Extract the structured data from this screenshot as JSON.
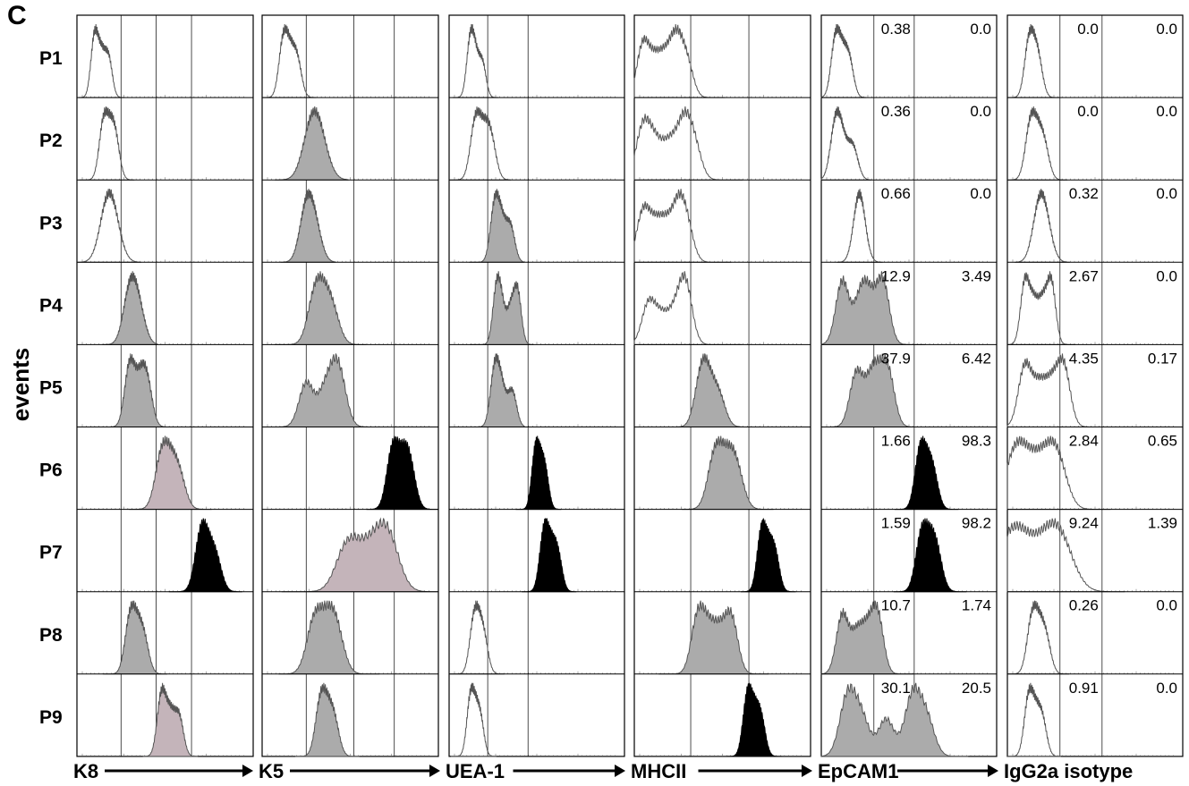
{
  "panel_letter": "C",
  "y_axis_label": "events",
  "rows": [
    "P1",
    "P2",
    "P3",
    "P4",
    "P5",
    "P6",
    "P7",
    "P8",
    "P9"
  ],
  "colors": {
    "open": "none",
    "gray": "#ababab",
    "mauve": "#c4b4ba",
    "black": "#000000",
    "outline": "#555555"
  },
  "chart_data": {
    "type": "histogram",
    "description_free": true,
    "markers": [
      {
        "name": "K8",
        "gates": [
          0.25,
          0.45,
          0.65
        ],
        "rows": [
          {
            "row": "P1",
            "fill": "open",
            "mode": 0.14,
            "spread": 0.05,
            "peaks": [
              0.1,
              0.14,
              0.18
            ]
          },
          {
            "row": "P2",
            "fill": "open",
            "mode": 0.17,
            "spread": 0.06,
            "peaks": [
              0.15,
              0.19,
              0.22
            ]
          },
          {
            "row": "P3",
            "fill": "open",
            "mode": 0.18,
            "spread": 0.07,
            "peaks": [
              0.17,
              0.21
            ]
          },
          {
            "row": "P4",
            "fill": "gray",
            "mode": 0.3,
            "spread": 0.06,
            "peaks": [
              0.3,
              0.35
            ]
          },
          {
            "row": "P5",
            "fill": "gray",
            "mode": 0.34,
            "spread": 0.07,
            "peaks": [
              0.3,
              0.36,
              0.4
            ]
          },
          {
            "row": "P6",
            "fill": "mauve",
            "mode": 0.53,
            "spread": 0.09,
            "peaks": [
              0.48,
              0.53,
              0.58
            ]
          },
          {
            "row": "P7",
            "fill": "black",
            "mode": 0.73,
            "spread": 0.08,
            "peaks": [
              0.7,
              0.74,
              0.79
            ]
          },
          {
            "row": "P8",
            "fill": "gray",
            "mode": 0.33,
            "spread": 0.07,
            "peaks": [
              0.3,
              0.34,
              0.38
            ]
          },
          {
            "row": "P9",
            "fill": "mauve",
            "mode": 0.53,
            "spread": 0.06,
            "peaks": [
              0.48,
              0.53,
              0.58
            ]
          }
        ]
      },
      {
        "name": "K5",
        "gates": [
          0.25,
          0.52,
          0.75
        ],
        "rows": [
          {
            "row": "P1",
            "fill": "open",
            "mode": 0.15,
            "spread": 0.06,
            "peaks": [
              0.12,
              0.16,
              0.2
            ]
          },
          {
            "row": "P2",
            "fill": "gray",
            "mode": 0.28,
            "spread": 0.08,
            "peaks": [
              0.28,
              0.33
            ]
          },
          {
            "row": "P3",
            "fill": "gray",
            "mode": 0.26,
            "spread": 0.06,
            "peaks": [
              0.25,
              0.3
            ]
          },
          {
            "row": "P4",
            "fill": "gray",
            "mode": 0.33,
            "spread": 0.1,
            "peaks": [
              0.3,
              0.35,
              0.4
            ]
          },
          {
            "row": "P5",
            "fill": "gray",
            "mode": 0.38,
            "spread": 0.13,
            "peaks": [
              0.25,
              0.35,
              0.4,
              0.44
            ]
          },
          {
            "row": "P6",
            "fill": "black",
            "mode": 0.8,
            "spread": 0.08,
            "peaks": [
              0.74,
              0.8,
              0.84
            ]
          },
          {
            "row": "P7",
            "fill": "mauve",
            "mode": 0.63,
            "spread": 0.2,
            "peaks": [
              0.48,
              0.58,
              0.66,
              0.72
            ]
          },
          {
            "row": "P8",
            "fill": "gray",
            "mode": 0.38,
            "spread": 0.11,
            "peaks": [
              0.3,
              0.38,
              0.42
            ]
          },
          {
            "row": "P9",
            "fill": "gray",
            "mode": 0.37,
            "spread": 0.07,
            "peaks": [
              0.33,
              0.37,
              0.41
            ]
          }
        ]
      },
      {
        "name": "UEA-1",
        "gates": [
          0.22,
          0.45
        ],
        "rows": [
          {
            "row": "P1",
            "fill": "open",
            "mode": 0.15,
            "spread": 0.05,
            "peaks": [
              0.12,
              0.15,
              0.19
            ]
          },
          {
            "row": "P2",
            "fill": "open",
            "mode": 0.17,
            "spread": 0.07,
            "peaks": [
              0.15,
              0.2,
              0.24
            ]
          },
          {
            "row": "P3",
            "fill": "gray",
            "mode": 0.27,
            "spread": 0.06,
            "peaks": [
              0.26,
              0.3,
              0.35
            ]
          },
          {
            "row": "P4",
            "fill": "gray",
            "mode": 0.3,
            "spread": 0.07,
            "peaks": [
              0.27,
              0.3,
              0.35,
              0.39
            ]
          },
          {
            "row": "P5",
            "fill": "gray",
            "mode": 0.27,
            "spread": 0.06,
            "peaks": [
              0.26,
              0.3,
              0.36
            ]
          },
          {
            "row": "P6",
            "fill": "black",
            "mode": 0.51,
            "spread": 0.05,
            "peaks": [
              0.49,
              0.52,
              0.55
            ]
          },
          {
            "row": "P7",
            "fill": "black",
            "mode": 0.57,
            "spread": 0.06,
            "peaks": [
              0.54,
              0.58,
              0.62
            ]
          },
          {
            "row": "P8",
            "fill": "open",
            "mode": 0.16,
            "spread": 0.06,
            "peaks": [
              0.14,
              0.17,
              0.2
            ]
          },
          {
            "row": "P9",
            "fill": "open",
            "mode": 0.14,
            "spread": 0.05,
            "peaks": [
              0.12,
              0.15,
              0.18
            ]
          }
        ]
      },
      {
        "name": "MHCII",
        "gates": [
          0.32,
          0.65
        ],
        "rows": [
          {
            "row": "P1",
            "fill": "open",
            "mode": 0.15,
            "spread": 0.14,
            "peaks": [
              0.05,
              0.12,
              0.18,
              0.24,
              0.3
            ]
          },
          {
            "row": "P2",
            "fill": "open",
            "mode": 0.2,
            "spread": 0.16,
            "peaks": [
              0.05,
              0.12,
              0.2,
              0.28,
              0.34
            ]
          },
          {
            "row": "P3",
            "fill": "open",
            "mode": 0.16,
            "spread": 0.15,
            "peaks": [
              0.05,
              0.12,
              0.18,
              0.25,
              0.3
            ]
          },
          {
            "row": "P4",
            "fill": "open",
            "mode": 0.22,
            "spread": 0.15,
            "peaks": [
              0.08,
              0.15,
              0.22,
              0.28,
              0.3
            ]
          },
          {
            "row": "P5",
            "fill": "gray",
            "mode": 0.42,
            "spread": 0.09,
            "peaks": [
              0.38,
              0.42,
              0.48
            ]
          },
          {
            "row": "P6",
            "fill": "gray",
            "mode": 0.53,
            "spread": 0.1,
            "peaks": [
              0.46,
              0.53,
              0.58
            ]
          },
          {
            "row": "P7",
            "fill": "black",
            "mode": 0.76,
            "spread": 0.06,
            "peaks": [
              0.72,
              0.76,
              0.8
            ]
          },
          {
            "row": "P8",
            "fill": "gray",
            "mode": 0.45,
            "spread": 0.12,
            "peaks": [
              0.36,
              0.42,
              0.48,
              0.55
            ]
          },
          {
            "row": "P9",
            "fill": "black",
            "mode": 0.68,
            "spread": 0.06,
            "peaks": [
              0.64,
              0.68,
              0.72
            ]
          }
        ]
      },
      {
        "name": "EpCAM1",
        "gates": [
          0.3,
          0.53
        ],
        "rows": [
          {
            "row": "P1",
            "fill": "open",
            "mode": 0.1,
            "spread": 0.06,
            "peaks": [
              0.08,
              0.12,
              0.16
            ],
            "left_value": "0.38",
            "right_value": "0.0"
          },
          {
            "row": "P2",
            "fill": "open",
            "mode": 0.1,
            "spread": 0.07,
            "peaks": [
              0.08,
              0.12,
              0.18
            ],
            "left_value": "0.36",
            "right_value": "0.0"
          },
          {
            "row": "P3",
            "fill": "open",
            "mode": 0.22,
            "spread": 0.05,
            "peaks": [
              0.21,
              0.23
            ],
            "left_value": "0.66",
            "right_value": "0.0"
          },
          {
            "row": "P4",
            "fill": "gray",
            "mode": 0.28,
            "spread": 0.12,
            "peaks": [
              0.12,
              0.22,
              0.27,
              0.35
            ],
            "left_value": "12.9",
            "right_value": "3.49"
          },
          {
            "row": "P5",
            "fill": "gray",
            "mode": 0.3,
            "spread": 0.12,
            "peaks": [
              0.2,
              0.28,
              0.32,
              0.38
            ],
            "left_value": "37.9",
            "right_value": "6.42"
          },
          {
            "row": "P6",
            "fill": "black",
            "mode": 0.6,
            "spread": 0.07,
            "peaks": [
              0.56,
              0.6,
              0.64
            ],
            "left_value": "1.66",
            "right_value": "98.3"
          },
          {
            "row": "P7",
            "fill": "black",
            "mode": 0.62,
            "spread": 0.08,
            "peaks": [
              0.57,
              0.62,
              0.66
            ],
            "left_value": "1.59",
            "right_value": "98.2"
          },
          {
            "row": "P8",
            "fill": "gray",
            "mode": 0.24,
            "spread": 0.11,
            "peaks": [
              0.12,
              0.2,
              0.26,
              0.32
            ],
            "left_value": "10.7",
            "right_value": "1.74"
          },
          {
            "row": "P9",
            "fill": "gray",
            "mode": 0.37,
            "spread": 0.18,
            "peaks": [
              0.15,
              0.23,
              0.37,
              0.52,
              0.6
            ],
            "left_value": "30.1",
            "right_value": "20.5"
          }
        ]
      },
      {
        "name": "IgG2a isotype",
        "gates": [
          0.3,
          0.54
        ],
        "rows": [
          {
            "row": "P1",
            "fill": "open",
            "mode": 0.14,
            "spread": 0.06,
            "peaks": [
              0.12,
              0.15,
              0.18
            ],
            "left_value": "0.0",
            "right_value": "0.0"
          },
          {
            "row": "P2",
            "fill": "open",
            "mode": 0.16,
            "spread": 0.07,
            "peaks": [
              0.13,
              0.17,
              0.21
            ],
            "left_value": "0.0",
            "right_value": "0.0"
          },
          {
            "row": "P3",
            "fill": "open",
            "mode": 0.2,
            "spread": 0.06,
            "peaks": [
              0.18,
              0.22
            ],
            "left_value": "0.32",
            "right_value": "0.0"
          },
          {
            "row": "P4",
            "fill": "open",
            "mode": 0.18,
            "spread": 0.08,
            "peaks": [
              0.1,
              0.15,
              0.2,
              0.25
            ],
            "left_value": "2.67",
            "right_value": "0.0"
          },
          {
            "row": "P5",
            "fill": "open",
            "mode": 0.2,
            "spread": 0.12,
            "peaks": [
              0.1,
              0.18,
              0.25,
              0.32
            ],
            "left_value": "4.35",
            "right_value": "0.17"
          },
          {
            "row": "P6",
            "fill": "open",
            "mode": 0.12,
            "spread": 0.18,
            "peaks": [
              0.04,
              0.12,
              0.2,
              0.28
            ],
            "left_value": "2.84",
            "right_value": "0.65"
          },
          {
            "row": "P7",
            "fill": "open",
            "mode": 0.02,
            "spread": 0.25,
            "peaks": [
              0.01,
              0.1,
              0.22,
              0.3
            ],
            "left_value": "9.24",
            "right_value": "1.39"
          },
          {
            "row": "P8",
            "fill": "open",
            "mode": 0.17,
            "spread": 0.07,
            "peaks": [
              0.14,
              0.18,
              0.22
            ],
            "left_value": "0.26",
            "right_value": "0.0"
          },
          {
            "row": "P9",
            "fill": "open",
            "mode": 0.15,
            "spread": 0.06,
            "peaks": [
              0.12,
              0.16,
              0.2
            ],
            "left_value": "0.91",
            "right_value": "0.0"
          }
        ]
      }
    ]
  }
}
